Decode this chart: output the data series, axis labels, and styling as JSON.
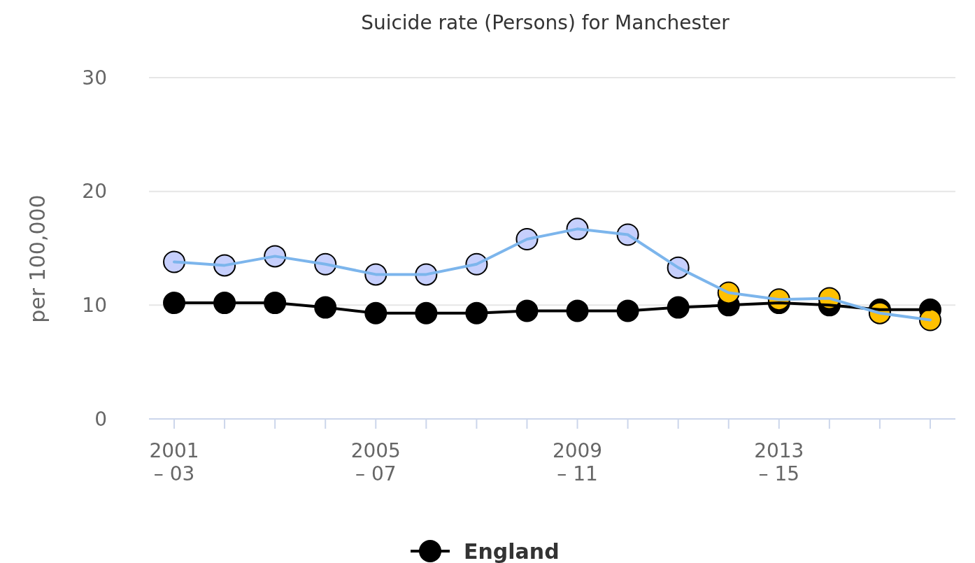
{
  "chart_data": {
    "type": "line",
    "title": "Suicide rate (Persons) for Manchester",
    "ylabel": "per 100,000",
    "categories": [
      "2001\n– 03",
      null,
      null,
      null,
      "2005\n– 07",
      null,
      null,
      null,
      "2009\n– 11",
      null,
      null,
      null,
      "2013\n– 15",
      null,
      null,
      null
    ],
    "series": [
      {
        "color": "#7cb5ec",
        "colors": [
          "#c6cffc",
          "#c6cffc",
          "#c6cffc",
          "#c6cffc",
          "#c6cffc",
          "#c6cffc",
          "#c6cffc",
          "#c6cffc",
          "#c6cffc",
          "#c6cffc",
          "#c6cffc",
          "#ffc000",
          "#ffc000",
          "#ffc000",
          "#ffc000",
          "#ffc000"
        ],
        "values": [
          13.8,
          13.5,
          14.3,
          13.6,
          12.7,
          12.7,
          13.6,
          15.8,
          16.7,
          16.2,
          13.3,
          11.1,
          10.5,
          10.6,
          9.3,
          8.7
        ]
      },
      {
        "name": "England",
        "color": "#000000",
        "values": [
          10.2,
          10.2,
          10.2,
          9.8,
          9.3,
          9.3,
          9.3,
          9.5,
          9.5,
          9.5,
          9.8,
          10.0,
          10.2,
          10.0,
          9.6,
          9.6
        ]
      }
    ],
    "ylim": [
      0,
      30
    ],
    "yticks": [
      0,
      10,
      20,
      30
    ],
    "grid": "y",
    "legend": "bottom",
    "marker": "circle",
    "line_style": "solid"
  }
}
